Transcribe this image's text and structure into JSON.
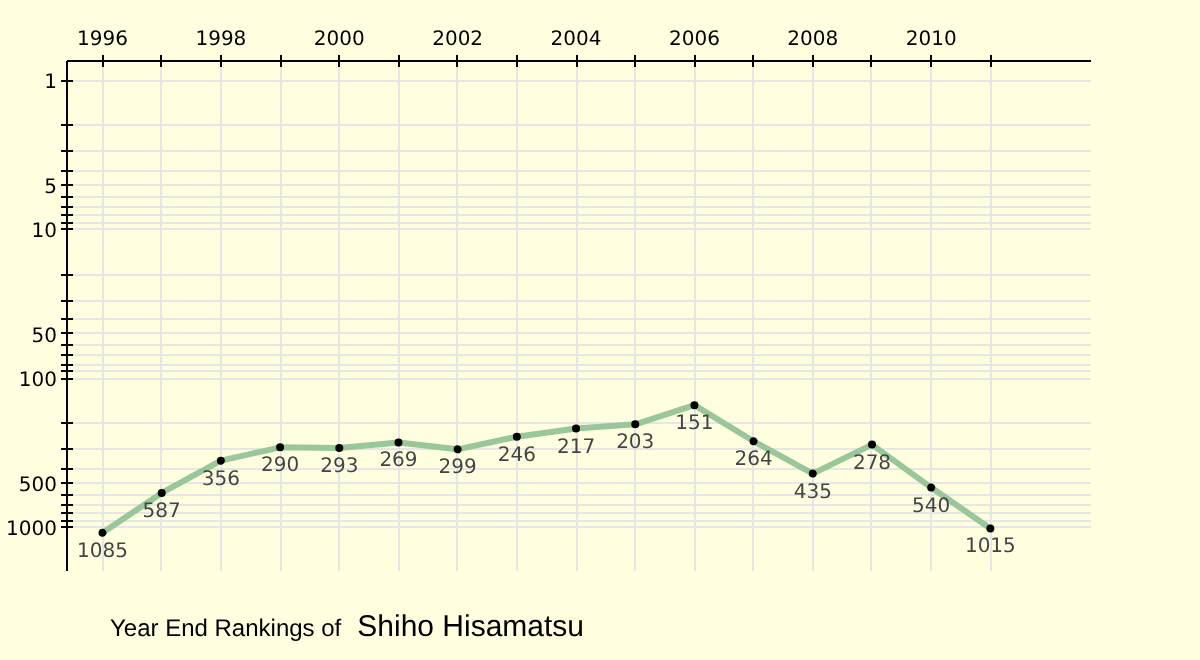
{
  "chart_data": {
    "type": "line",
    "title": "Year End Rankings of",
    "subtitle": "Shiho Hisamatsu",
    "x": [
      1996,
      1997,
      1998,
      1999,
      2000,
      2001,
      2002,
      2003,
      2004,
      2005,
      2006,
      2007,
      2008,
      2009,
      2010,
      2011
    ],
    "series": [
      {
        "color": "#99c799",
        "values": [
          1085,
          587,
          356,
          290,
          293,
          269,
          299,
          246,
          217,
          203,
          151,
          264,
          435,
          278,
          540,
          1015
        ]
      }
    ],
    "data_labels": true,
    "marker": "circle",
    "line_style": "solid",
    "log": true,
    "grid": true,
    "xlim": [
      1995.4,
      2012.7
    ],
    "ylim": [
      1960,
      0.74
    ],
    "xticks": [
      1996,
      {
        "value": 1997,
        "label": null
      },
      1998,
      {
        "value": 1999,
        "label": null
      },
      2000,
      {
        "value": 2001,
        "label": null
      },
      2002,
      {
        "value": 2003,
        "label": null
      },
      2004,
      {
        "value": 2005,
        "label": null
      },
      2006,
      {
        "value": 2007,
        "label": null
      },
      2008,
      {
        "value": 2009,
        "label": null
      },
      2010,
      {
        "value": 2011,
        "label": null
      }
    ],
    "yticks": [
      1,
      {
        "value": 2,
        "label": null
      },
      {
        "value": 3,
        "label": null
      },
      {
        "value": 4,
        "label": null
      },
      5,
      {
        "value": 6,
        "label": null
      },
      {
        "value": 7,
        "label": null
      },
      {
        "value": 8,
        "label": null
      },
      {
        "value": 9,
        "label": null
      },
      10,
      {
        "value": 20,
        "label": null
      },
      {
        "value": 30,
        "label": null
      },
      {
        "value": 40,
        "label": null
      },
      50,
      {
        "value": 60,
        "label": null
      },
      {
        "value": 70,
        "label": null
      },
      {
        "value": 80,
        "label": null
      },
      {
        "value": 90,
        "label": null
      },
      100,
      {
        "value": 200,
        "label": null
      },
      {
        "value": 300,
        "label": null
      },
      {
        "value": 400,
        "label": null
      },
      500,
      {
        "value": 600,
        "label": null
      },
      {
        "value": 700,
        "label": null
      },
      {
        "value": 800,
        "label": null
      },
      {
        "value": 900,
        "label": null
      },
      1000
    ]
  }
}
